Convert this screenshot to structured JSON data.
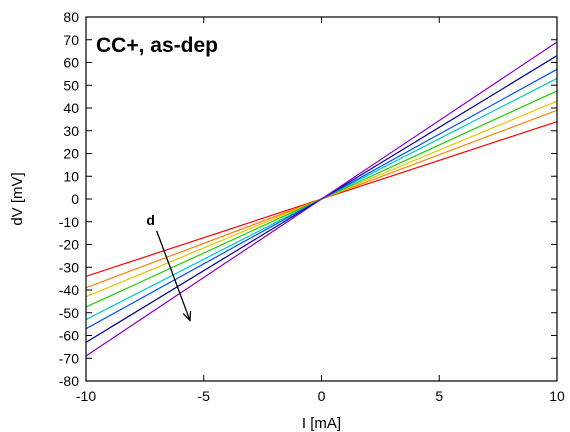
{
  "chart_data": {
    "type": "line",
    "title": "CC+, as-dep",
    "xlabel": "I [mA]",
    "ylabel": "dV [mV]",
    "xlim": [
      -10,
      10
    ],
    "ylim": [
      -80,
      80
    ],
    "x_ticks": [
      -10,
      -5,
      0,
      5,
      10
    ],
    "y_ticks": [
      -80,
      -70,
      -60,
      -50,
      -40,
      -30,
      -20,
      -10,
      0,
      10,
      20,
      30,
      40,
      50,
      60,
      70,
      80
    ],
    "grid": false,
    "legend": "none",
    "annotation": {
      "text": "d",
      "arrow_from": [
        -7.0,
        -14
      ],
      "arrow_to": [
        -5.6,
        -53
      ]
    },
    "series": [
      {
        "color": "#ff0000",
        "x": [
          -10,
          10
        ],
        "y": [
          -34,
          34
        ]
      },
      {
        "color": "#ff8000",
        "x": [
          -10,
          10
        ],
        "y": [
          -39,
          39
        ]
      },
      {
        "color": "#e8c400",
        "x": [
          -10,
          10
        ],
        "y": [
          -43,
          43
        ]
      },
      {
        "color": "#22cc00",
        "x": [
          -10,
          10
        ],
        "y": [
          -47.5,
          47.5
        ]
      },
      {
        "color": "#00c8c8",
        "x": [
          -10,
          10
        ],
        "y": [
          -53,
          53
        ]
      },
      {
        "color": "#0050ff",
        "x": [
          -10,
          10
        ],
        "y": [
          -57,
          57
        ]
      },
      {
        "color": "#00008b",
        "x": [
          -10,
          10
        ],
        "y": [
          -63,
          63
        ]
      },
      {
        "color": "#8b00c8",
        "x": [
          -10,
          10
        ],
        "y": [
          -69,
          69
        ]
      }
    ]
  }
}
